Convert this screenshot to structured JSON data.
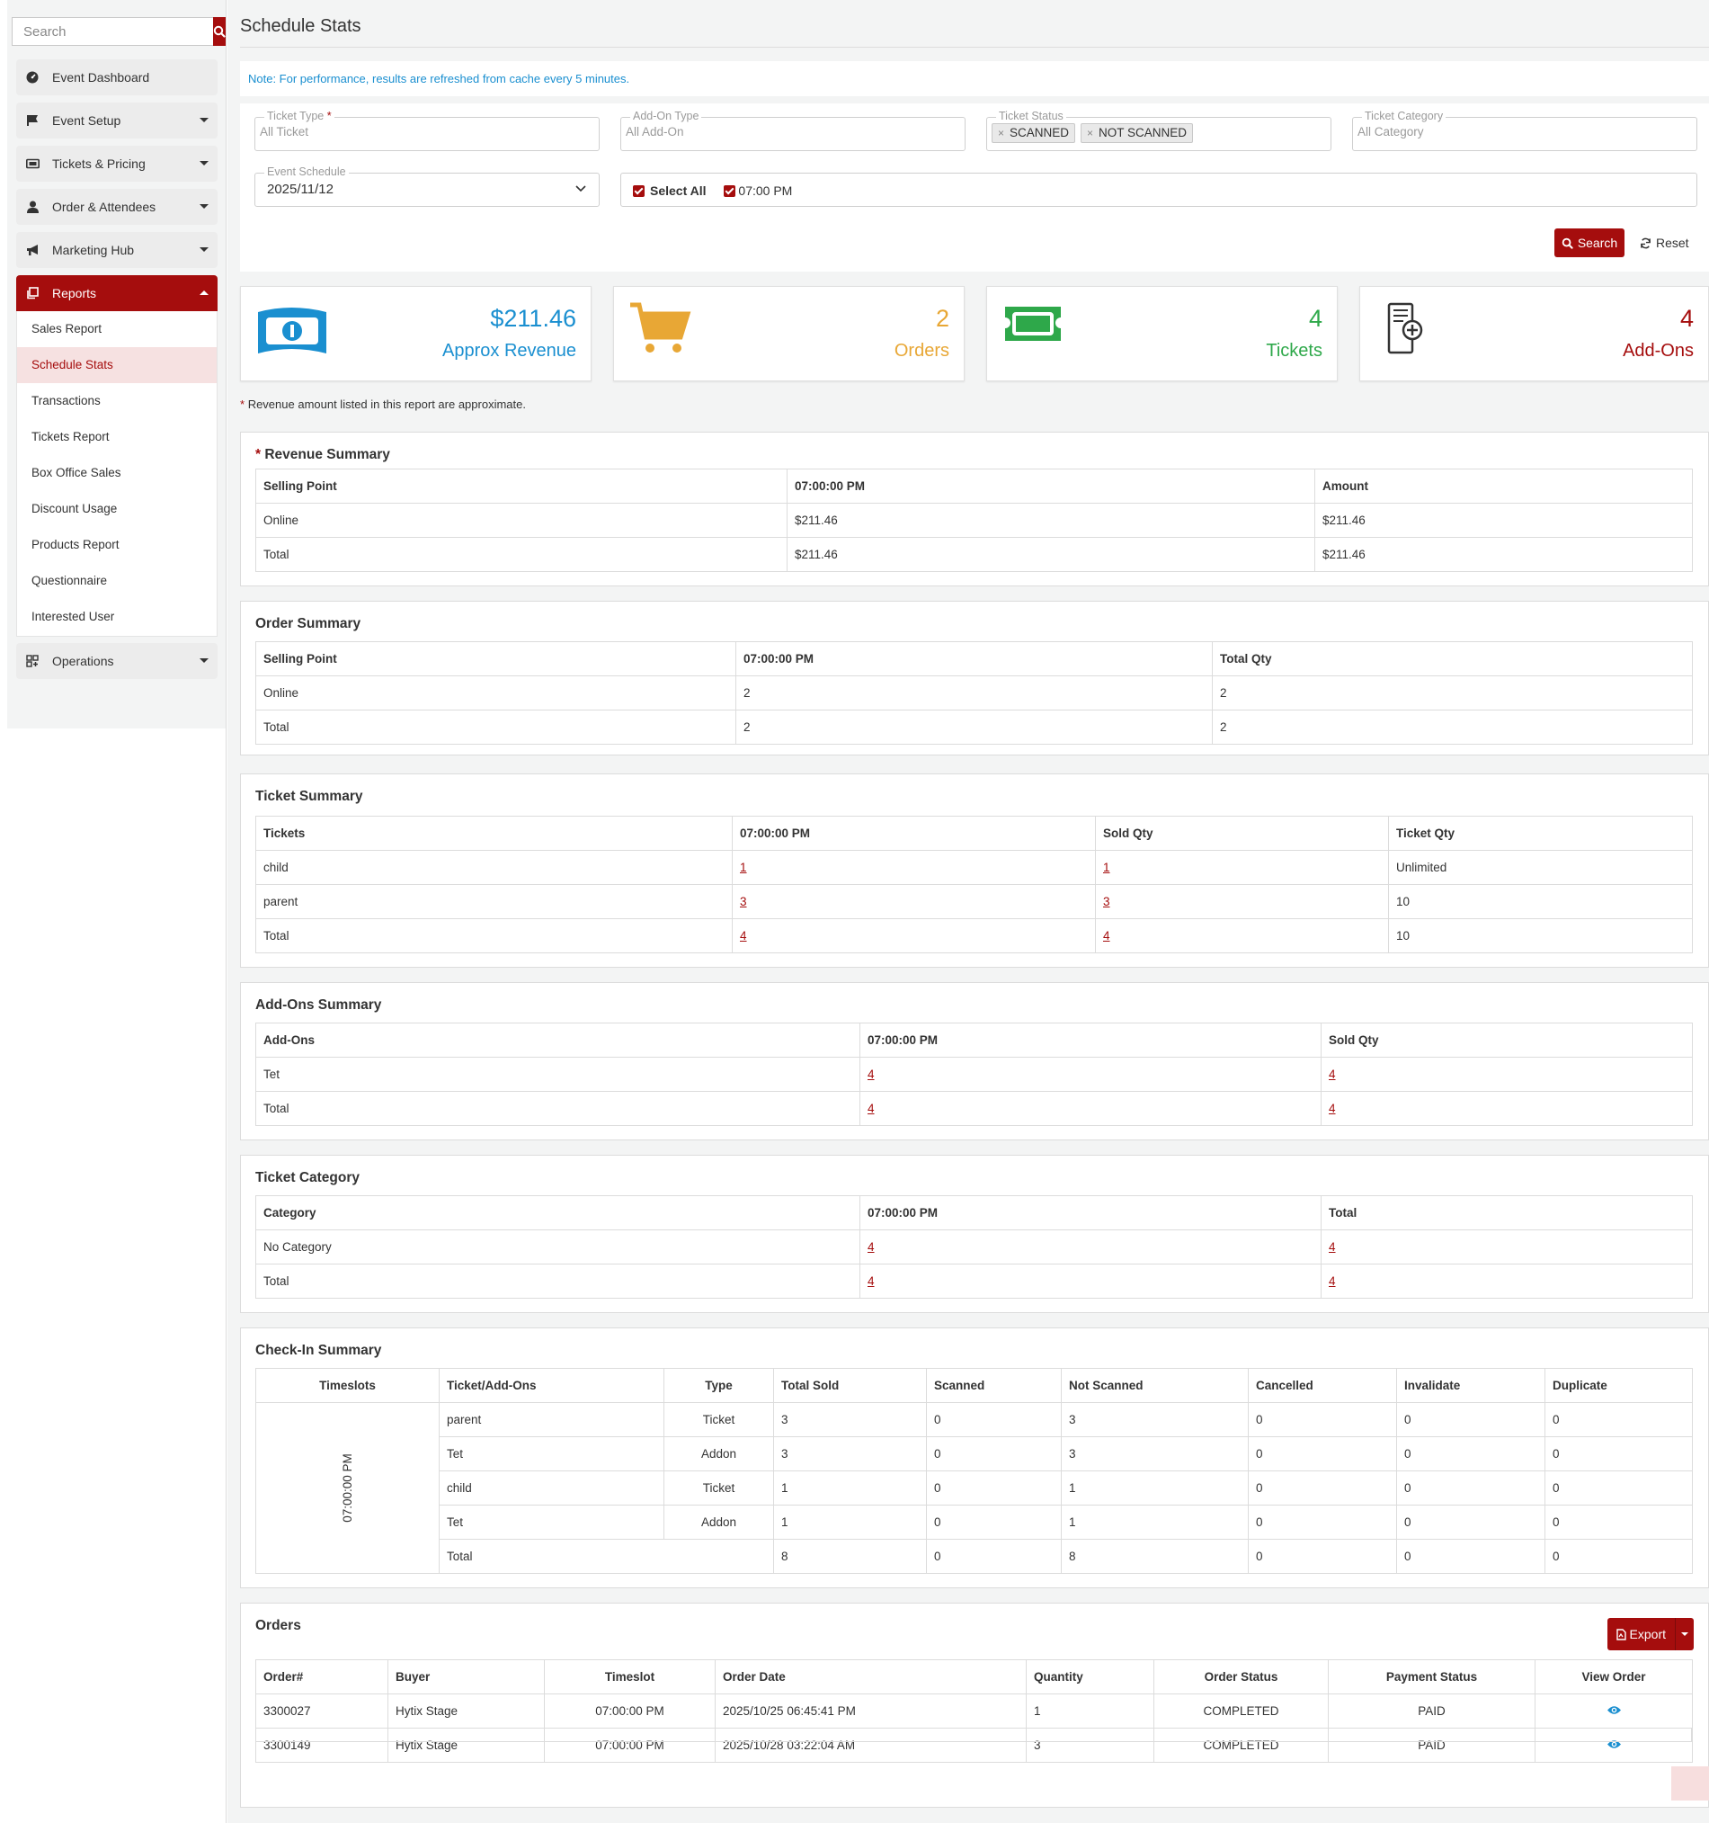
{
  "sidebar": {
    "search_placeholder": "Search",
    "items": [
      {
        "label": "Event Dashboard",
        "icon": "gauge-icon"
      },
      {
        "label": "Event Setup",
        "icon": "flag-icon"
      },
      {
        "label": "Tickets & Pricing",
        "icon": "ticket-icon"
      },
      {
        "label": "Order & Attendees",
        "icon": "user-icon"
      },
      {
        "label": "Marketing Hub",
        "icon": "bullhorn-icon"
      },
      {
        "label": "Reports",
        "icon": "copy-icon"
      },
      {
        "label": "Operations",
        "icon": "grid-plus-icon"
      }
    ],
    "reports_sub": [
      "Sales Report",
      "Schedule Stats",
      "Transactions",
      "Tickets Report",
      "Box Office Sales",
      "Discount Usage",
      "Products Report",
      "Questionnaire",
      "Interested User"
    ]
  },
  "page": {
    "title": "Schedule Stats",
    "note": "Note: For performance, results are refreshed from cache every 5 minutes."
  },
  "filters": {
    "ticket_type": {
      "label": "Ticket Type",
      "required": "*",
      "value": "All Ticket"
    },
    "addon_type": {
      "label": "Add-On Type",
      "value": "All Add-On"
    },
    "ticket_status": {
      "label": "Ticket Status",
      "tags": [
        "SCANNED",
        "NOT SCANNED"
      ]
    },
    "ticket_category": {
      "label": "Ticket Category",
      "value": "All Category"
    },
    "event_schedule": {
      "label": "Event Schedule",
      "value": "2025/11/12"
    },
    "select_all": "Select All",
    "slot": "07:00 PM",
    "search_btn": "Search",
    "reset_btn": "Reset"
  },
  "stats": {
    "revenue": {
      "value": "$211.46",
      "label": "Approx Revenue",
      "color": "#1a8fd0"
    },
    "orders": {
      "value": "2",
      "label": "Orders",
      "color": "#e8a735"
    },
    "tickets": {
      "value": "4",
      "label": "Tickets",
      "color": "#2ea84a"
    },
    "addons": {
      "value": "4",
      "label": "Add-Ons",
      "color": "#a50d0d"
    }
  },
  "revenue_note": "Revenue amount listed in this report are approximate.",
  "revenue_summary": {
    "title": "Revenue Summary",
    "headers": [
      "Selling Point",
      "07:00:00 PM",
      "Amount"
    ],
    "rows": [
      [
        "Online",
        "$211.46",
        "$211.46"
      ],
      [
        "Total",
        "$211.46",
        "$211.46"
      ]
    ]
  },
  "order_summary": {
    "title": "Order Summary",
    "headers": [
      "Selling Point",
      "07:00:00 PM",
      "Total Qty"
    ],
    "rows": [
      [
        "Online",
        "2",
        "2"
      ],
      [
        "Total",
        "2",
        "2"
      ]
    ]
  },
  "ticket_summary": {
    "title": "Ticket Summary",
    "headers": [
      "Tickets",
      "07:00:00 PM",
      "Sold Qty",
      "Ticket Qty"
    ],
    "rows": [
      [
        "child",
        "1",
        "1",
        "Unlimited"
      ],
      [
        "parent",
        "3",
        "3",
        "10"
      ],
      [
        "Total",
        "4",
        "4",
        "10"
      ]
    ]
  },
  "addons_summary": {
    "title": "Add-Ons Summary",
    "headers": [
      "Add-Ons",
      "07:00:00 PM",
      "Sold Qty"
    ],
    "rows": [
      [
        "Tet",
        "4",
        "4"
      ],
      [
        "Total",
        "4",
        "4"
      ]
    ]
  },
  "ticket_category": {
    "title": "Ticket Category",
    "headers": [
      "Category",
      "07:00:00 PM",
      "Total"
    ],
    "rows": [
      [
        "No Category",
        "4",
        "4"
      ],
      [
        "Total",
        "4",
        "4"
      ]
    ]
  },
  "checkin_summary": {
    "title": "Check-In Summary",
    "headers": [
      "Timeslots",
      "Ticket/Add-Ons",
      "Type",
      "Total Sold",
      "Scanned",
      "Not Scanned",
      "Cancelled",
      "Invalidate",
      "Duplicate"
    ],
    "timeslot": "07:00:00 PM",
    "rows": [
      [
        "parent",
        "Ticket",
        "3",
        "0",
        "3",
        "0",
        "0",
        "0"
      ],
      [
        "Tet",
        "Addon",
        "3",
        "0",
        "3",
        "0",
        "0",
        "0"
      ],
      [
        "child",
        "Ticket",
        "1",
        "0",
        "1",
        "0",
        "0",
        "0"
      ],
      [
        "Tet",
        "Addon",
        "1",
        "0",
        "1",
        "0",
        "0",
        "0"
      ]
    ],
    "total": [
      "Total",
      "8",
      "0",
      "8",
      "0",
      "0",
      "0"
    ]
  },
  "orders": {
    "title": "Orders",
    "export": "Export",
    "headers": [
      "Order#",
      "Buyer",
      "Timeslot",
      "Order Date",
      "Quantity",
      "Order Status",
      "Payment Status",
      "View Order"
    ],
    "rows": [
      [
        "3300027",
        "Hytix Stage",
        "07:00:00 PM",
        "2025/10/25 06:45:41 PM",
        "1",
        "COMPLETED",
        "PAID"
      ],
      [
        "3300149",
        "Hytix Stage",
        "07:00:00 PM",
        "2025/10/28 03:22:04 AM",
        "3",
        "COMPLETED",
        "PAID"
      ]
    ]
  }
}
